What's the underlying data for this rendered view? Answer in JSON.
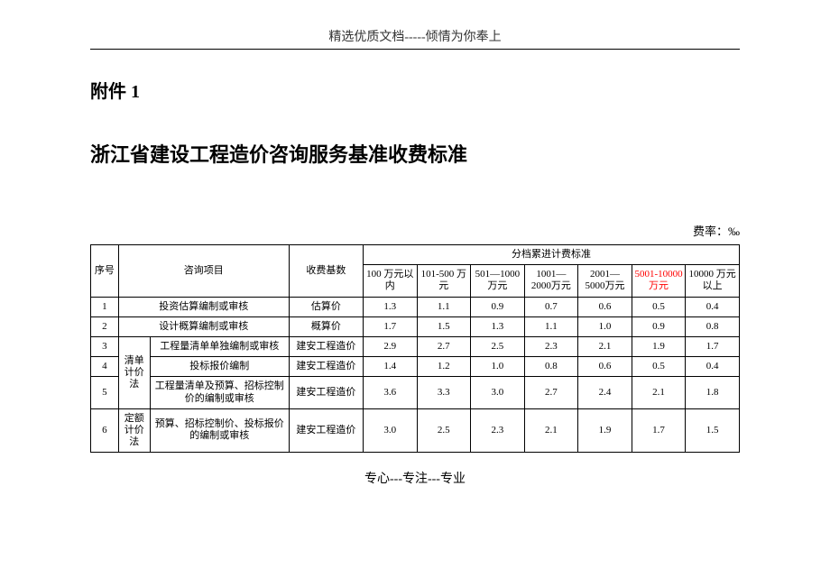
{
  "header_text": "精选优质文档-----倾情为你奉上",
  "attachment_label": "附件 1",
  "main_title": "浙江省建设工程造价咨询服务基准收费标准",
  "rate_unit": "费率：‰",
  "columns": {
    "seq": "序号",
    "item": "咨询项目",
    "base": "收费基数",
    "tier_header": "分档累进计费标准",
    "tiers": [
      "100 万元以内",
      "101-500 万元",
      "501—1000万元",
      "1001—2000万元",
      "2001—5000万元",
      "5001-10000万元",
      "10000 万元以上"
    ]
  },
  "groups": {
    "list_method": "清单计价法",
    "quota_method": "定额计价法"
  },
  "rows": [
    {
      "seq": "1",
      "group": "",
      "item": "投资估算编制或审核",
      "base": "估算价",
      "vals": [
        "1.3",
        "1.1",
        "0.9",
        "0.7",
        "0.6",
        "0.5",
        "0.4"
      ]
    },
    {
      "seq": "2",
      "group": "",
      "item": "设计概算编制或审核",
      "base": "概算价",
      "vals": [
        "1.7",
        "1.5",
        "1.3",
        "1.1",
        "1.0",
        "0.9",
        "0.8"
      ]
    },
    {
      "seq": "3",
      "group": "list",
      "item": "工程量清单单独编制或审核",
      "base": "建安工程造价",
      "vals": [
        "2.9",
        "2.7",
        "2.5",
        "2.3",
        "2.1",
        "1.9",
        "1.7"
      ]
    },
    {
      "seq": "4",
      "group": "list",
      "item": "投标报价编制",
      "base": "建安工程造价",
      "vals": [
        "1.4",
        "1.2",
        "1.0",
        "0.8",
        "0.6",
        "0.5",
        "0.4"
      ]
    },
    {
      "seq": "5",
      "group": "list",
      "item": "工程量清单及预算、招标控制价的编制或审核",
      "base": "建安工程造价",
      "vals": [
        "3.6",
        "3.3",
        "3.0",
        "2.7",
        "2.4",
        "2.1",
        "1.8"
      ]
    },
    {
      "seq": "6",
      "group": "quota",
      "item": "预算、招标控制价、投标报价的编制或审核",
      "base": "建安工程造价",
      "vals": [
        "3.0",
        "2.5",
        "2.3",
        "2.1",
        "1.9",
        "1.7",
        "1.5"
      ]
    }
  ],
  "footer_text": "专心---专注---专业",
  "highlight_tier_index": 5
}
